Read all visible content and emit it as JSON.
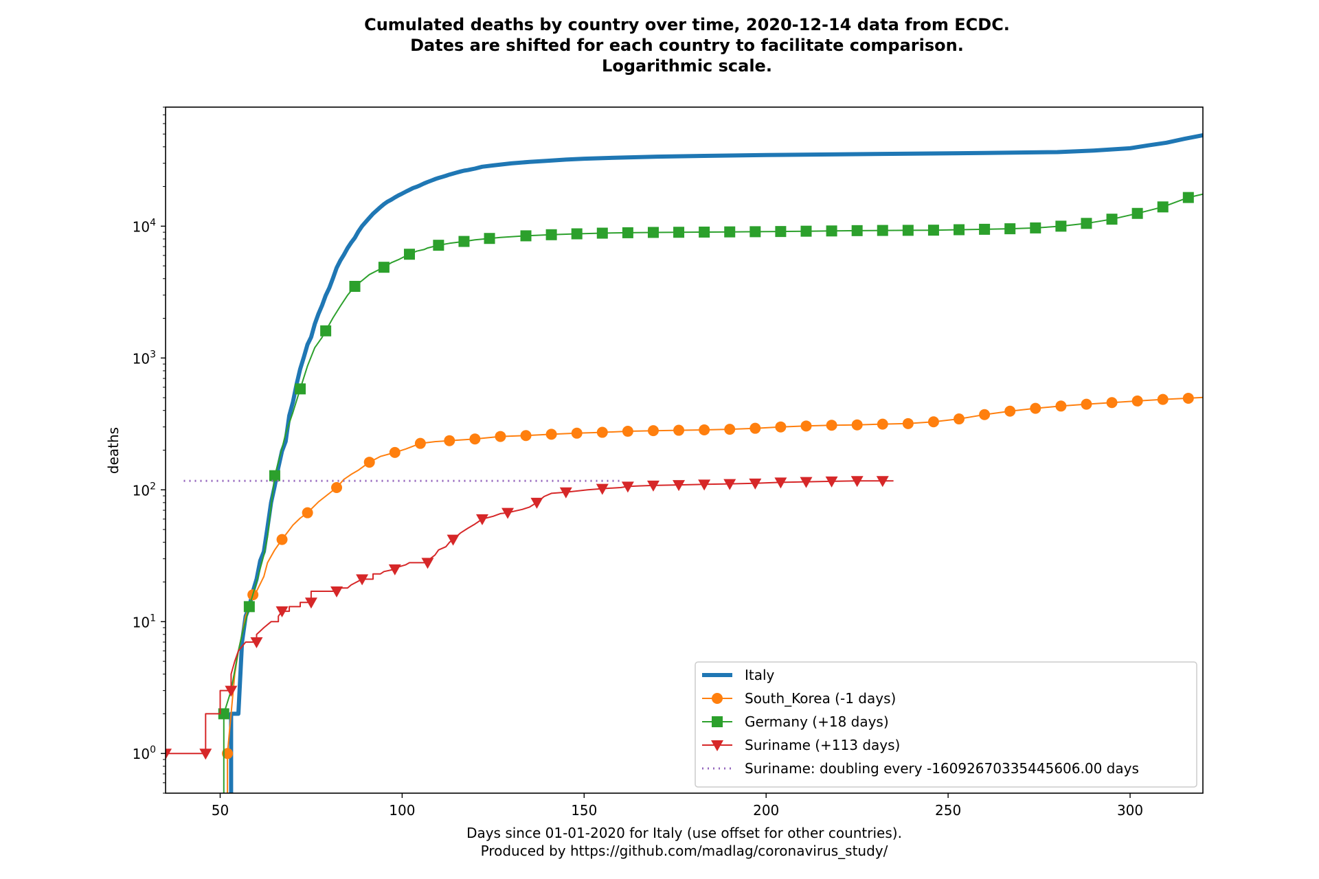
{
  "chart_data": {
    "type": "line",
    "title_lines": [
      "Cumulated deaths by country over time, 2020-12-14 data from ECDC.",
      "Dates are shifted for each country to facilitate comparison.",
      "Logarithmic scale."
    ],
    "xlabel_lines": [
      "Days since 01-01-2020 for Italy (use offset for other countries).",
      "Produced by https://github.com/madlag/coronavirus_study/"
    ],
    "ylabel": "deaths",
    "xlim": [
      35,
      320
    ],
    "ylim": [
      0.5,
      80000
    ],
    "yscale": "log",
    "grid": false,
    "legend_position": "lower-right",
    "x_ticks": [
      50,
      100,
      150,
      200,
      250,
      300
    ],
    "y_ticks": [
      {
        "value": 1,
        "base": "10",
        "exp": "0"
      },
      {
        "value": 10,
        "base": "10",
        "exp": "1"
      },
      {
        "value": 100,
        "base": "10",
        "exp": "2"
      },
      {
        "value": 1000,
        "base": "10",
        "exp": "3"
      },
      {
        "value": 10000,
        "base": "10",
        "exp": "4"
      }
    ],
    "series": [
      {
        "name": "Italy",
        "color": "#1f77b4",
        "marker": "none",
        "line_width": 6,
        "points": [
          [
            53,
            0.3
          ],
          [
            53,
            2
          ],
          [
            55,
            2
          ],
          [
            56,
            7
          ],
          [
            57,
            11
          ],
          [
            58,
            13
          ],
          [
            59,
            17
          ],
          [
            60,
            21
          ],
          [
            61,
            29
          ],
          [
            62,
            34
          ],
          [
            63,
            52
          ],
          [
            64,
            80
          ],
          [
            65,
            107
          ],
          [
            66,
            148
          ],
          [
            67,
            197
          ],
          [
            68,
            233
          ],
          [
            69,
            366
          ],
          [
            70,
            463
          ],
          [
            71,
            631
          ],
          [
            72,
            827
          ],
          [
            73,
            1016
          ],
          [
            74,
            1266
          ],
          [
            75,
            1441
          ],
          [
            76,
            1809
          ],
          [
            77,
            2158
          ],
          [
            78,
            2503
          ],
          [
            79,
            2978
          ],
          [
            80,
            3405
          ],
          [
            81,
            4032
          ],
          [
            82,
            4825
          ],
          [
            83,
            5476
          ],
          [
            84,
            6077
          ],
          [
            85,
            6820
          ],
          [
            86,
            7503
          ],
          [
            87,
            8165
          ],
          [
            88,
            9134
          ],
          [
            89,
            10023
          ],
          [
            90,
            10779
          ],
          [
            91,
            11591
          ],
          [
            92,
            12428
          ],
          [
            93,
            13155
          ],
          [
            94,
            13915
          ],
          [
            95,
            14681
          ],
          [
            96,
            15362
          ],
          [
            97,
            15887
          ],
          [
            98,
            16523
          ],
          [
            99,
            17127
          ],
          [
            100,
            17669
          ],
          [
            101,
            18279
          ],
          [
            102,
            18849
          ],
          [
            103,
            19468
          ],
          [
            104,
            19899
          ],
          [
            105,
            20465
          ],
          [
            106,
            21067
          ],
          [
            107,
            21645
          ],
          [
            108,
            22170
          ],
          [
            109,
            22745
          ],
          [
            110,
            23227
          ],
          [
            111,
            23660
          ],
          [
            112,
            24114
          ],
          [
            113,
            24648
          ],
          [
            114,
            25085
          ],
          [
            115,
            25549
          ],
          [
            116,
            25969
          ],
          [
            117,
            26384
          ],
          [
            118,
            26644
          ],
          [
            119,
            26977
          ],
          [
            120,
            27359
          ],
          [
            122,
            28236
          ],
          [
            125,
            28884
          ],
          [
            130,
            29958
          ],
          [
            135,
            30739
          ],
          [
            140,
            31368
          ],
          [
            145,
            32007
          ],
          [
            150,
            32486
          ],
          [
            160,
            33142
          ],
          [
            170,
            33689
          ],
          [
            180,
            34043
          ],
          [
            200,
            34634
          ],
          [
            220,
            35097
          ],
          [
            240,
            35487
          ],
          [
            260,
            35940
          ],
          [
            280,
            36480
          ],
          [
            290,
            37500
          ],
          [
            300,
            39000
          ],
          [
            305,
            41000
          ],
          [
            310,
            43000
          ],
          [
            315,
            46000
          ],
          [
            320,
            49000
          ]
        ]
      },
      {
        "name": "South_Korea (-1 days)",
        "color": "#ff7f0e",
        "marker": "circle",
        "line_width": 2,
        "points": [
          [
            52,
            0.3
          ],
          [
            52,
            1
          ],
          [
            53,
            2
          ],
          [
            54,
            4
          ],
          [
            55,
            6
          ],
          [
            56,
            8
          ],
          [
            57,
            11
          ],
          [
            58,
            13
          ],
          [
            59,
            16
          ],
          [
            60,
            17
          ],
          [
            62,
            22
          ],
          [
            63,
            28
          ],
          [
            65,
            35
          ],
          [
            67,
            42
          ],
          [
            70,
            54
          ],
          [
            72,
            61
          ],
          [
            74,
            67
          ],
          [
            77,
            81
          ],
          [
            80,
            94
          ],
          [
            82,
            104
          ],
          [
            84,
            120
          ],
          [
            86,
            131
          ],
          [
            88,
            141
          ],
          [
            91,
            162
          ],
          [
            94,
            179
          ],
          [
            98,
            192
          ],
          [
            101,
            204
          ],
          [
            105,
            225
          ],
          [
            109,
            232
          ],
          [
            113,
            236
          ],
          [
            120,
            243
          ],
          [
            127,
            254
          ],
          [
            134,
            258
          ],
          [
            141,
            264
          ],
          [
            148,
            269
          ],
          [
            155,
            273
          ],
          [
            162,
            278
          ],
          [
            169,
            281
          ],
          [
            176,
            283
          ],
          [
            183,
            285
          ],
          [
            190,
            288
          ],
          [
            197,
            293
          ],
          [
            204,
            300
          ],
          [
            211,
            305
          ],
          [
            218,
            309
          ],
          [
            225,
            311
          ],
          [
            232,
            315
          ],
          [
            239,
            318
          ],
          [
            246,
            328
          ],
          [
            253,
            345
          ],
          [
            260,
            372
          ],
          [
            267,
            395
          ],
          [
            274,
            415
          ],
          [
            281,
            432
          ],
          [
            288,
            446
          ],
          [
            295,
            459
          ],
          [
            302,
            472
          ],
          [
            309,
            485
          ],
          [
            316,
            495
          ],
          [
            320,
            502
          ]
        ]
      },
      {
        "name": "Germany (+18 days)",
        "color": "#2ca02c",
        "marker": "square",
        "line_width": 2,
        "points": [
          [
            51,
            0.3
          ],
          [
            51,
            2
          ],
          [
            53,
            3
          ],
          [
            55,
            6
          ],
          [
            56,
            8
          ],
          [
            58,
            13
          ],
          [
            60,
            20
          ],
          [
            62,
            32
          ],
          [
            63,
            44
          ],
          [
            65,
            128
          ],
          [
            67,
            206
          ],
          [
            68,
            267
          ],
          [
            70,
            387
          ],
          [
            72,
            583
          ],
          [
            74,
            870
          ],
          [
            76,
            1198
          ],
          [
            78,
            1434
          ],
          [
            79,
            1607
          ],
          [
            81,
            2016
          ],
          [
            83,
            2469
          ],
          [
            85,
            2993
          ],
          [
            87,
            3495
          ],
          [
            89,
            3868
          ],
          [
            91,
            4294
          ],
          [
            93,
            4586
          ],
          [
            95,
            4879
          ],
          [
            97,
            5279
          ],
          [
            99,
            5575
          ],
          [
            100,
            5760
          ],
          [
            102,
            6126
          ],
          [
            104,
            6467
          ],
          [
            106,
            6649
          ],
          [
            107,
            6831
          ],
          [
            110,
            7166
          ],
          [
            113,
            7417
          ],
          [
            117,
            7661
          ],
          [
            120,
            7881
          ],
          [
            124,
            8072
          ],
          [
            127,
            8216
          ],
          [
            134,
            8450
          ],
          [
            141,
            8613
          ],
          [
            148,
            8750
          ],
          [
            155,
            8851
          ],
          [
            162,
            8917
          ],
          [
            169,
            8967
          ],
          [
            176,
            8990
          ],
          [
            183,
            9019
          ],
          [
            190,
            9050
          ],
          [
            197,
            9080
          ],
          [
            204,
            9110
          ],
          [
            211,
            9160
          ],
          [
            218,
            9201
          ],
          [
            225,
            9251
          ],
          [
            232,
            9283
          ],
          [
            239,
            9300
          ],
          [
            246,
            9325
          ],
          [
            253,
            9400
          ],
          [
            260,
            9470
          ],
          [
            267,
            9560
          ],
          [
            274,
            9700
          ],
          [
            281,
            10000
          ],
          [
            288,
            10500
          ],
          [
            295,
            11300
          ],
          [
            302,
            12500
          ],
          [
            309,
            14000
          ],
          [
            316,
            16500
          ],
          [
            320,
            17500
          ]
        ]
      },
      {
        "name": "Suriname (+113 days)",
        "color": "#d62728",
        "marker": "triangle",
        "line_width": 2,
        "points": [
          [
            35,
            1
          ],
          [
            46,
            1
          ],
          [
            46,
            2
          ],
          [
            50,
            2
          ],
          [
            50,
            3
          ],
          [
            53,
            3
          ],
          [
            53,
            4
          ],
          [
            54,
            5
          ],
          [
            55,
            6
          ],
          [
            57,
            7
          ],
          [
            60,
            7
          ],
          [
            60,
            8
          ],
          [
            62,
            9
          ],
          [
            64,
            10
          ],
          [
            66,
            10
          ],
          [
            66,
            11
          ],
          [
            67,
            12
          ],
          [
            69,
            12
          ],
          [
            69,
            13
          ],
          [
            72,
            13
          ],
          [
            72,
            14
          ],
          [
            75,
            14
          ],
          [
            75,
            17
          ],
          [
            82,
            17
          ],
          [
            82,
            18
          ],
          [
            85,
            18
          ],
          [
            86,
            19
          ],
          [
            89,
            21
          ],
          [
            92,
            21
          ],
          [
            92,
            23
          ],
          [
            94,
            23
          ],
          [
            95,
            24
          ],
          [
            98,
            25
          ],
          [
            99,
            26
          ],
          [
            101,
            27
          ],
          [
            102,
            28
          ],
          [
            107,
            28
          ],
          [
            107,
            29
          ],
          [
            109,
            32
          ],
          [
            110,
            35
          ],
          [
            112,
            37
          ],
          [
            113,
            40
          ],
          [
            114,
            42
          ],
          [
            116,
            47
          ],
          [
            118,
            51
          ],
          [
            120,
            55
          ],
          [
            122,
            60
          ],
          [
            125,
            63
          ],
          [
            127,
            66
          ],
          [
            129,
            67
          ],
          [
            131,
            69
          ],
          [
            133,
            71
          ],
          [
            135,
            74
          ],
          [
            137,
            80
          ],
          [
            139,
            89
          ],
          [
            141,
            94
          ],
          [
            145,
            96
          ],
          [
            148,
            98
          ],
          [
            151,
            100
          ],
          [
            155,
            102
          ],
          [
            160,
            104
          ],
          [
            162,
            106
          ],
          [
            165,
            107
          ],
          [
            169,
            108
          ],
          [
            176,
            109
          ],
          [
            183,
            110
          ],
          [
            190,
            111
          ],
          [
            197,
            112
          ],
          [
            204,
            114
          ],
          [
            211,
            115
          ],
          [
            218,
            116
          ],
          [
            225,
            117
          ],
          [
            232,
            117
          ],
          [
            235,
            117
          ]
        ]
      },
      {
        "name": "Suriname: doubling every -16092670335445606.00 days",
        "color": "#9467bd",
        "marker": "none",
        "line_width": 3,
        "dash": "2 6",
        "points": [
          [
            40,
            117
          ],
          [
            160,
            117
          ]
        ]
      }
    ]
  }
}
